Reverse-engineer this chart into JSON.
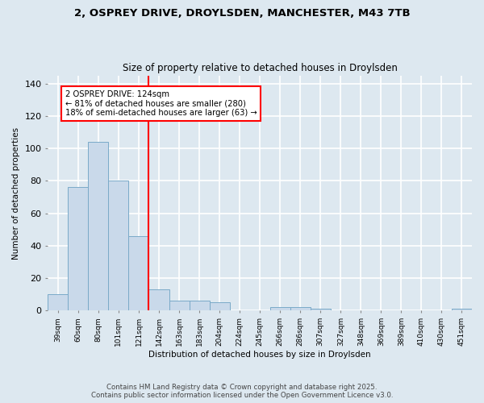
{
  "title_line1": "2, OSPREY DRIVE, DROYLSDEN, MANCHESTER, M43 7TB",
  "title_line2": "Size of property relative to detached houses in Droylsden",
  "xlabel": "Distribution of detached houses by size in Droylsden",
  "ylabel": "Number of detached properties",
  "categories": [
    "39sqm",
    "60sqm",
    "80sqm",
    "101sqm",
    "121sqm",
    "142sqm",
    "163sqm",
    "183sqm",
    "204sqm",
    "224sqm",
    "245sqm",
    "266sqm",
    "286sqm",
    "307sqm",
    "327sqm",
    "348sqm",
    "369sqm",
    "389sqm",
    "410sqm",
    "430sqm",
    "451sqm"
  ],
  "values": [
    10,
    76,
    104,
    80,
    46,
    13,
    6,
    6,
    5,
    0,
    0,
    2,
    2,
    1,
    0,
    0,
    0,
    0,
    0,
    0,
    1
  ],
  "bar_color": "#c9d9ea",
  "bar_edge_color": "#7aaac8",
  "background_color": "#dde8f0",
  "grid_color": "#ffffff",
  "vline_x_index": 4.5,
  "vline_color": "red",
  "annotation_text": "2 OSPREY DRIVE: 124sqm\n← 81% of detached houses are smaller (280)\n18% of semi-detached houses are larger (63) →",
  "annotation_box_color": "white",
  "annotation_box_edge_color": "red",
  "ylim": [
    0,
    145
  ],
  "yticks": [
    0,
    20,
    40,
    60,
    80,
    100,
    120,
    140
  ],
  "footer_line1": "Contains HM Land Registry data © Crown copyright and database right 2025.",
  "footer_line2": "Contains public sector information licensed under the Open Government Licence v3.0."
}
